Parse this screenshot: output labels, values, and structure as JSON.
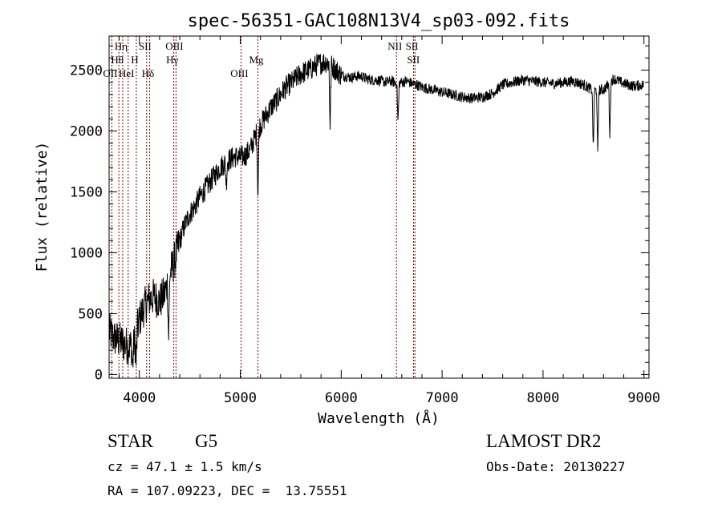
{
  "chart_data": {
    "type": "line",
    "title": "spec-56351-GAC108N13V4_sp03-092.fits",
    "xlabel": "Wavelength (Å)",
    "ylabel": "Flux (relative)",
    "xlim": [
      3700,
      9050
    ],
    "ylim": [
      -30,
      2780
    ],
    "x_ticks": [
      4000,
      5000,
      6000,
      7000,
      8000,
      9000
    ],
    "x_tick_labels": [
      "4000",
      "5000",
      "6000",
      "7000",
      "8000",
      "9000"
    ],
    "y_ticks": [
      0,
      500,
      1000,
      1500,
      2000,
      2500
    ],
    "y_tick_labels": [
      "0",
      "500",
      "1000",
      "1500",
      "2000",
      "2500"
    ],
    "grid": false,
    "line_color": "#000000",
    "marker_color": "#8b0000",
    "line_markers": [
      {
        "label": "OII",
        "x": 3727,
        "row": 2
      },
      {
        "label": "Hη",
        "x": 3835,
        "row": 0
      },
      {
        "label": "Hθ",
        "x": 3797,
        "row": 1
      },
      {
        "label": "HeI",
        "x": 3889,
        "row": 2
      },
      {
        "label": "SII",
        "x": 4072,
        "row": 0
      },
      {
        "label": "H",
        "x": 3970,
        "row": 1
      },
      {
        "label": "Hδ",
        "x": 4102,
        "row": 2
      },
      {
        "label": "OIII",
        "x": 4363,
        "row": 0
      },
      {
        "label": "Hγ",
        "x": 4341,
        "row": 1
      },
      {
        "label": "OIII",
        "x": 5007,
        "row": 2
      },
      {
        "label": "Mg",
        "x": 5175,
        "row": 1
      },
      {
        "label": "NII",
        "x": 6548,
        "row": 0
      },
      {
        "label": "SII",
        "x": 6717,
        "row": 0
      },
      {
        "label": "SII",
        "x": 6731,
        "row": 1
      }
    ],
    "series": [
      {
        "x": [
          3700,
          3750,
          3800,
          3850,
          3900,
          3950,
          4000,
          4050,
          4100,
          4150,
          4200,
          4250,
          4300,
          4350,
          4400,
          4450,
          4500,
          4550,
          4600,
          4650,
          4700,
          4750,
          4800,
          4850,
          4900,
          4950,
          5000,
          5050,
          5100,
          5150,
          5200,
          5250,
          5300,
          5350,
          5400,
          5450,
          5500,
          5550,
          5600,
          5650,
          5700,
          5750,
          5800,
          5850,
          5900,
          5950,
          6000,
          6050,
          6100,
          6150,
          6200,
          6250,
          6300,
          6350,
          6400,
          6450,
          6500,
          6550,
          6600,
          6650,
          6700,
          6750,
          6800,
          6850,
          6900,
          6950,
          7000,
          7100,
          7200,
          7300,
          7400,
          7500,
          7600,
          7700,
          7800,
          7900,
          8000,
          8100,
          8200,
          8300,
          8400,
          8500,
          8600,
          8700,
          8800,
          8900,
          9000
        ],
        "y": [
          350,
          300,
          280,
          250,
          230,
          260,
          450,
          560,
          620,
          640,
          600,
          660,
          820,
          940,
          1100,
          1230,
          1320,
          1380,
          1460,
          1520,
          1580,
          1640,
          1700,
          1740,
          1770,
          1790,
          1780,
          1800,
          1850,
          1960,
          2050,
          2120,
          2190,
          2240,
          2300,
          2360,
          2390,
          2430,
          2470,
          2490,
          2510,
          2540,
          2560,
          2570,
          2540,
          2500,
          2460,
          2450,
          2440,
          2450,
          2450,
          2430,
          2420,
          2420,
          2410,
          2400,
          2410,
          2390,
          2400,
          2410,
          2390,
          2380,
          2360,
          2350,
          2340,
          2330,
          2320,
          2300,
          2280,
          2270,
          2280,
          2310,
          2380,
          2400,
          2420,
          2410,
          2400,
          2390,
          2400,
          2410,
          2380,
          2330,
          2340,
          2430,
          2390,
          2370,
          2380
        ]
      }
    ],
    "absorption_features": [
      {
        "x": 3933,
        "y": 60
      },
      {
        "x": 3968,
        "y": 90
      },
      {
        "x": 4290,
        "y": 280
      },
      {
        "x": 4861,
        "y": 1560
      },
      {
        "x": 5175,
        "y": 1460
      },
      {
        "x": 5890,
        "y": 2050
      },
      {
        "x": 6563,
        "y": 2060
      },
      {
        "x": 8498,
        "y": 1820
      },
      {
        "x": 8542,
        "y": 1810
      },
      {
        "x": 8662,
        "y": 1960
      }
    ]
  },
  "info": {
    "object_class": "STAR",
    "subclass": "G5",
    "survey": "LAMOST DR2",
    "cz": "cz = 47.1 ± 1.5 km/s",
    "obs_date": "Obs-Date: 20130227",
    "coords": "RA = 107.09223, DEC =  13.75551"
  }
}
